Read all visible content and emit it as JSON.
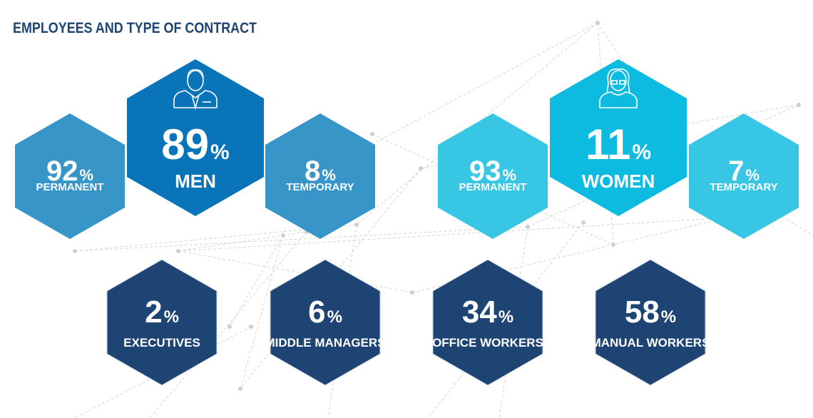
{
  "title": "EMPLOYEES AND TYPE OF CONTRACT",
  "hexagons": [
    {
      "value": 92,
      "unit": "%",
      "label": "PERMANENT"
    },
    {
      "value": 89,
      "unit": "%",
      "label": "MEN"
    },
    {
      "value": 8,
      "unit": "%",
      "label": "TEMPORARY"
    },
    {
      "value": 93,
      "unit": "%",
      "label": "PERMANENT"
    },
    {
      "value": 11,
      "unit": "%",
      "label": "WOMEN"
    },
    {
      "value": 7,
      "unit": "%",
      "label": "TEMPORARY"
    },
    {
      "value": 2,
      "unit": "%",
      "label": "EXECUTIVES"
    },
    {
      "value": 6,
      "unit": "%",
      "label": "MIDDLE MANAGERS"
    },
    {
      "value": 34,
      "unit": "%",
      "label": "OFFICE WORKERS"
    },
    {
      "value": 58,
      "unit": "%",
      "label": "MANUAL WORKERS"
    }
  ]
}
